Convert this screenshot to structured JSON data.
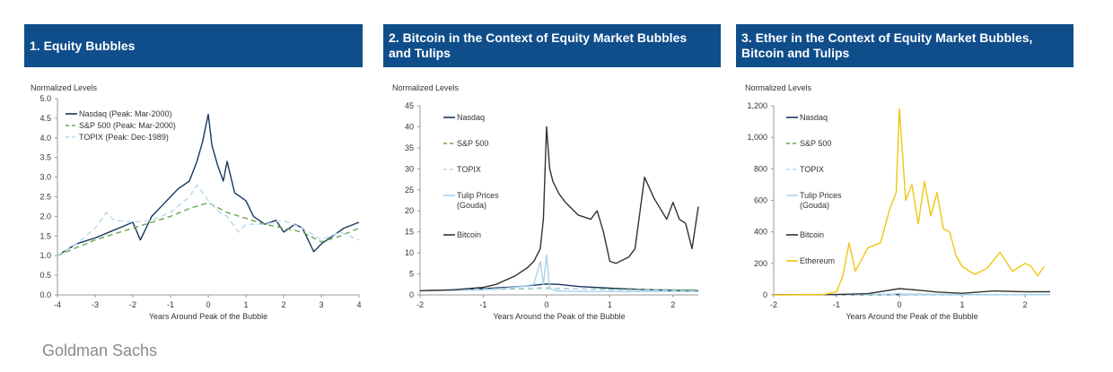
{
  "source": "Goldman Sachs",
  "colors": {
    "banner": "#104e8b",
    "nasdaq": "#17375e",
    "sp500": "#6aa84f",
    "topix": "#b7d7ee",
    "tulip": "#a9d3ee",
    "bitcoin": "#333333",
    "ethereum": "#f2c40f",
    "axis": "#999999"
  },
  "chart_data": [
    {
      "type": "line",
      "title": "1. Equity Bubbles",
      "ylabel": "Normalized Levels",
      "xlabel": "Years Around Peak of the Bubble",
      "xlim": [
        -4,
        4
      ],
      "ylim": [
        0,
        5
      ],
      "xticks": [
        "-4",
        "-3",
        "-2",
        "-1",
        "0",
        "1",
        "2",
        "3",
        "4"
      ],
      "yticks": [
        "0.0",
        "0.5",
        "1.0",
        "1.5",
        "2.0",
        "2.5",
        "3.0",
        "3.5",
        "4.0",
        "4.5",
        "5.0"
      ],
      "legend_position": "top-left",
      "series": [
        {
          "name": "Nasdaq (Peak: Mar-2000)",
          "color": "#17375e",
          "dash": "solid",
          "x": [
            -4,
            -3.5,
            -3,
            -2.5,
            -2,
            -1.8,
            -1.5,
            -1.2,
            -1,
            -0.8,
            -0.5,
            -0.3,
            -0.15,
            0,
            0.1,
            0.25,
            0.4,
            0.5,
            0.7,
            1,
            1.2,
            1.5,
            1.8,
            2,
            2.3,
            2.5,
            2.8,
            3,
            3.3,
            3.6,
            4
          ],
          "y": [
            1.0,
            1.3,
            1.45,
            1.65,
            1.85,
            1.4,
            2.0,
            2.3,
            2.5,
            2.7,
            2.9,
            3.4,
            3.9,
            4.6,
            3.8,
            3.3,
            2.9,
            3.4,
            2.6,
            2.4,
            2.0,
            1.8,
            1.9,
            1.6,
            1.8,
            1.7,
            1.1,
            1.3,
            1.5,
            1.7,
            1.85
          ]
        },
        {
          "name": "S&P 500 (Peak: Mar-2000)",
          "color": "#6aa84f",
          "dash": "6,4",
          "x": [
            -4,
            -3.5,
            -3,
            -2.5,
            -2,
            -1.5,
            -1,
            -0.5,
            0,
            0.3,
            0.5,
            1,
            1.5,
            2,
            2.5,
            3,
            3.5,
            4
          ],
          "y": [
            1.0,
            1.2,
            1.4,
            1.55,
            1.7,
            1.85,
            2.0,
            2.2,
            2.35,
            2.2,
            2.1,
            1.95,
            1.8,
            1.7,
            1.6,
            1.35,
            1.5,
            1.7
          ]
        },
        {
          "name": "TOPIX (Peak: Dec-1989)",
          "color": "#b7d7ee",
          "dash": "6,4",
          "x": [
            -4,
            -3.5,
            -3,
            -2.7,
            -2.5,
            -2,
            -1.5,
            -1,
            -0.5,
            -0.3,
            0,
            0.3,
            0.5,
            0.8,
            1,
            1.5,
            2,
            2.5,
            3,
            3.5,
            4
          ],
          "y": [
            1.0,
            1.3,
            1.7,
            2.1,
            1.9,
            1.85,
            1.9,
            2.1,
            2.5,
            2.8,
            2.4,
            2.1,
            2.0,
            1.6,
            1.8,
            1.8,
            1.9,
            1.7,
            1.4,
            1.6,
            1.4
          ]
        }
      ]
    },
    {
      "type": "line",
      "title": "2. Bitcoin in the Context of Equity Market Bubbles\nand Tulips",
      "ylabel": "Normalized Levels",
      "xlabel": "Years Around the Peak of the Bubble",
      "xlim": [
        -2,
        2.4
      ],
      "ylim": [
        0,
        45
      ],
      "xticks": [
        "-2",
        "-1",
        "0",
        "1",
        "2"
      ],
      "yticks": [
        "0",
        "5",
        "10",
        "15",
        "20",
        "25",
        "30",
        "35",
        "40",
        "45"
      ],
      "legend_position": "left",
      "series": [
        {
          "name": "Nasdaq",
          "color": "#17375e",
          "dash": "solid",
          "x": [
            -2,
            -1.5,
            -1,
            -0.5,
            0,
            0.2,
            0.5,
            1,
            1.5,
            2,
            2.4
          ],
          "y": [
            1.0,
            1.2,
            1.5,
            1.9,
            2.6,
            2.5,
            2.0,
            1.6,
            1.3,
            1.1,
            1.0
          ]
        },
        {
          "name": "S&P 500",
          "color": "#6aa84f",
          "dash": "6,4",
          "x": [
            -2,
            -1,
            0,
            1,
            2,
            2.4
          ],
          "y": [
            1.0,
            1.3,
            1.6,
            1.3,
            1.2,
            1.2
          ]
        },
        {
          "name": "TOPIX",
          "color": "#b7d7ee",
          "dash": "6,4",
          "x": [
            -2,
            -1,
            0,
            1,
            2,
            2.4
          ],
          "y": [
            1.0,
            1.4,
            1.7,
            1.2,
            1.0,
            0.9
          ]
        },
        {
          "name": "Tulip Prices\n(Gouda)",
          "color": "#a9d3ee",
          "dash": "solid",
          "x": [
            -2,
            -1,
            -0.5,
            -0.2,
            -0.1,
            -0.05,
            0,
            0.05,
            0.15,
            0.3,
            0.6,
            1,
            2.4
          ],
          "y": [
            1.0,
            1.2,
            1.8,
            2.5,
            8.0,
            2.5,
            9.5,
            1.5,
            1.0,
            0.9,
            0.8,
            0.8,
            0.8
          ]
        },
        {
          "name": "Bitcoin",
          "color": "#333333",
          "dash": "solid",
          "x": [
            -2,
            -1.5,
            -1,
            -0.8,
            -0.5,
            -0.3,
            -0.2,
            -0.1,
            -0.05,
            0,
            0.05,
            0.1,
            0.2,
            0.3,
            0.5,
            0.7,
            0.8,
            0.9,
            1.0,
            1.1,
            1.3,
            1.4,
            1.55,
            1.7,
            1.9,
            2.0,
            2.1,
            2.2,
            2.3,
            2.4
          ],
          "y": [
            1.0,
            1.2,
            1.8,
            2.5,
            4.5,
            6.5,
            8.0,
            11.0,
            18.0,
            40.0,
            30.0,
            27.0,
            24.0,
            22.0,
            19.0,
            18.0,
            20.0,
            15.0,
            8.0,
            7.5,
            9.0,
            11.0,
            28.0,
            23.0,
            18.0,
            22.0,
            18.0,
            17.0,
            11.0,
            21.0
          ]
        }
      ]
    },
    {
      "type": "line",
      "title": "3. Ether in the Context of Equity Market Bubbles,\nBitcoin and Tulips",
      "ylabel": "Normalized Levels",
      "xlabel": "Years Around the Peak of the Bubble",
      "xlim": [
        -2,
        2.4
      ],
      "ylim": [
        0,
        1200
      ],
      "xticks": [
        "-2",
        "-1",
        "0",
        "1",
        "2"
      ],
      "yticks": [
        "0",
        "200",
        "400",
        "600",
        "800",
        "1,000",
        "1,200"
      ],
      "legend_position": "left",
      "series": [
        {
          "name": "Nasdaq",
          "color": "#17375e",
          "dash": "solid",
          "x": [
            -2,
            0,
            2.4
          ],
          "y": [
            1,
            3,
            1
          ]
        },
        {
          "name": "S&P 500",
          "color": "#6aa84f",
          "dash": "6,4",
          "x": [
            -2,
            0,
            2.4
          ],
          "y": [
            1,
            2,
            1
          ]
        },
        {
          "name": "TOPIX",
          "color": "#b7d7ee",
          "dash": "6,4",
          "x": [
            -2,
            0,
            2.4
          ],
          "y": [
            1,
            2,
            1
          ]
        },
        {
          "name": "Tulip Prices\n(Gouda)",
          "color": "#a9d3ee",
          "dash": "solid",
          "x": [
            -2,
            -0.1,
            0,
            0.1,
            2.4
          ],
          "y": [
            1,
            5,
            10,
            2,
            1
          ]
        },
        {
          "name": "Bitcoin",
          "color": "#333333",
          "dash": "solid",
          "x": [
            -2,
            -1,
            -0.5,
            0,
            0.3,
            0.6,
            1.0,
            1.5,
            2.0,
            2.4
          ],
          "y": [
            1,
            2,
            8,
            40,
            30,
            18,
            10,
            25,
            20,
            20
          ]
        },
        {
          "name": "Ethereum",
          "color": "#f2c40f",
          "dash": "solid",
          "x": [
            -2,
            -1.2,
            -1,
            -0.9,
            -0.8,
            -0.7,
            -0.5,
            -0.3,
            -0.15,
            -0.05,
            0,
            0.05,
            0.1,
            0.2,
            0.3,
            0.4,
            0.5,
            0.6,
            0.7,
            0.8,
            0.9,
            1.0,
            1.2,
            1.4,
            1.6,
            1.8,
            2.0,
            2.1,
            2.2,
            2.3
          ],
          "y": [
            0,
            2,
            20,
            120,
            330,
            150,
            300,
            330,
            550,
            650,
            1180,
            900,
            600,
            700,
            450,
            720,
            500,
            650,
            420,
            400,
            250,
            180,
            130,
            170,
            270,
            150,
            200,
            180,
            120,
            180
          ]
        }
      ]
    }
  ]
}
